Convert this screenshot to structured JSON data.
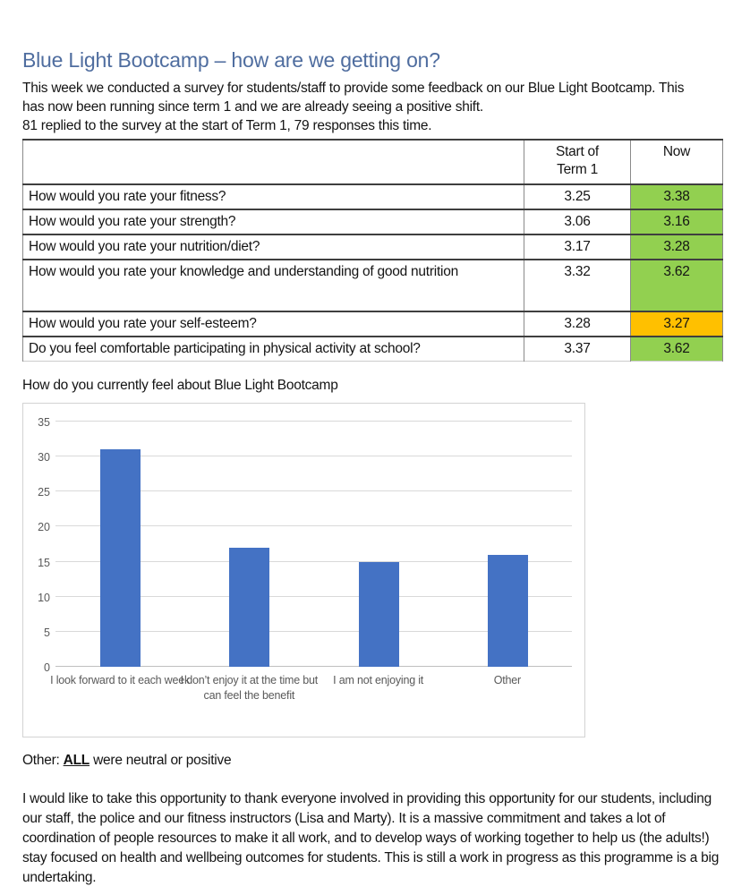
{
  "doc": {
    "title": "Blue Light Bootcamp – how are we getting on?",
    "intro_para": "This week we conducted a survey for students/staff to provide some feedback on our Blue Light Bootcamp. This has now been running since term 1 and we are already seeing a positive shift.",
    "intro_stats": "81 replied to the survey at the start of Term 1, 79 responses this time.",
    "other_note": {
      "prefix": "Other: ",
      "emphasis": "ALL",
      "suffix": " were neutral or positive"
    },
    "closing": "I would like to take this opportunity to thank everyone involved in providing this opportunity for our students, including our staff, the police and our fitness instructors (Lisa and Marty). It is a massive commitment and takes a lot of coordination of people resources to make it all work, and to develop ways of working together to help us (the adults!) stay focused on health and wellbeing outcomes for students. This is still a work in progress as this programme is a big undertaking."
  },
  "colors": {
    "heading": "#4f6d9f",
    "bar": "#4472c4",
    "positive": "#92d050",
    "caution": "#ffc000"
  },
  "table": {
    "col_headers": [
      "",
      "Start of\nTerm 1",
      "Now"
    ],
    "rows": [
      {
        "question": "How would you rate your fitness?",
        "start": "3.25",
        "now": "3.38",
        "now_status": "positive",
        "tall": false
      },
      {
        "question": "How would you rate your strength?",
        "start": "3.06",
        "now": "3.16",
        "now_status": "positive",
        "tall": false
      },
      {
        "question": "How would you rate your nutrition/diet?",
        "start": "3.17",
        "now": "3.28",
        "now_status": "positive",
        "tall": false
      },
      {
        "question": "How would you rate your knowledge and understanding of good nutrition",
        "start": "3.32",
        "now": "3.62",
        "now_status": "positive",
        "tall": true
      },
      {
        "question": "How would you rate your self-esteem?",
        "start": "3.28",
        "now": "3.27",
        "now_status": "caution",
        "tall": false
      },
      {
        "question": "Do you feel comfortable participating in physical activity at school?",
        "start": "3.37",
        "now": "3.62",
        "now_status": "positive",
        "tall": false
      }
    ]
  },
  "chart_data": {
    "type": "bar",
    "title": "How do you currently feel about Blue Light Bootcamp",
    "categories": [
      "I look forward to it each week",
      "I don’t enjoy it at the time but can feel the benefit",
      "I am not enjoying it",
      "Other"
    ],
    "values": [
      31,
      17,
      15,
      16
    ],
    "xlabel": "",
    "ylabel": "",
    "ylim": [
      0,
      35
    ],
    "yticks": [
      0,
      5,
      10,
      15,
      20,
      25,
      30,
      35
    ],
    "grid": true,
    "legend": false,
    "bar_color": "#4472c4"
  }
}
